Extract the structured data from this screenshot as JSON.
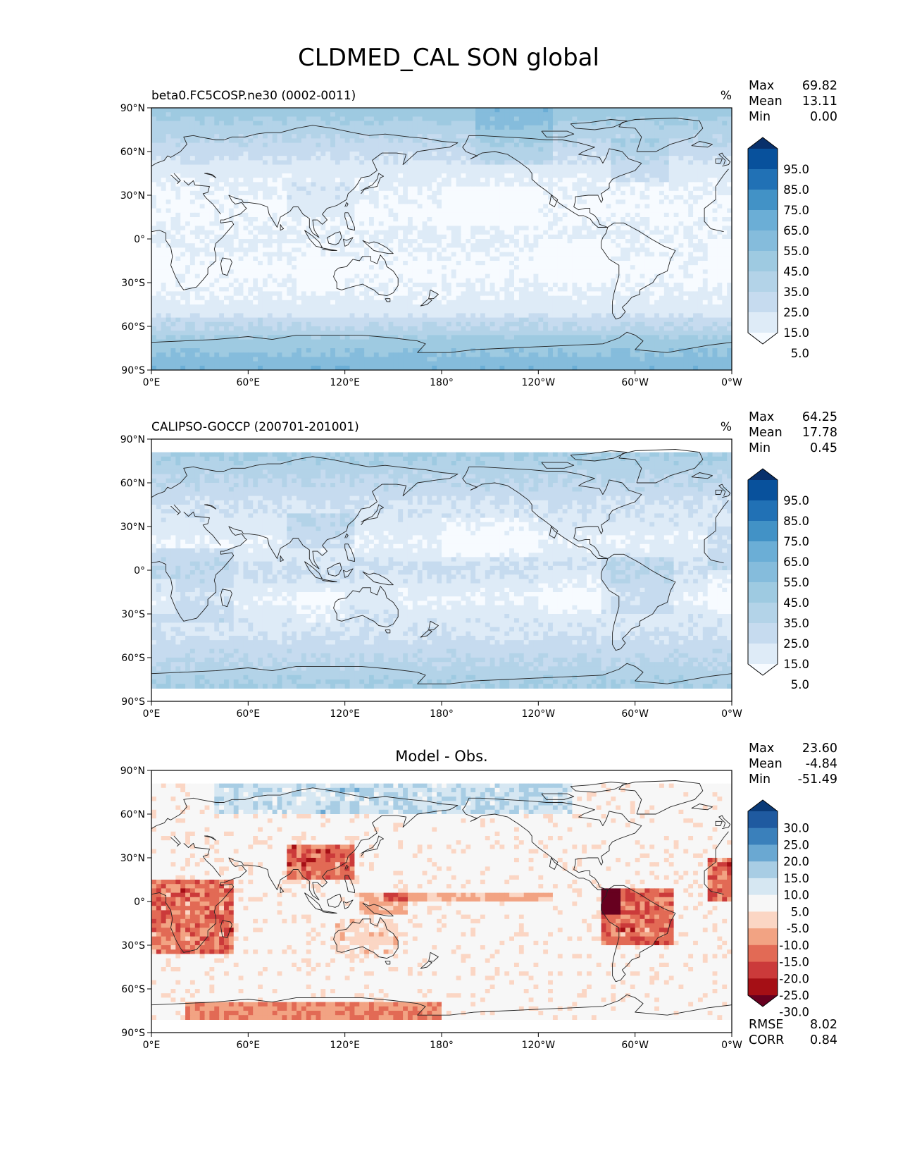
{
  "figure_title": "CLDMED_CAL SON global",
  "palettes": {
    "blues": [
      "#f7fbff",
      "#deebf7",
      "#c6dbef",
      "#b3d3e8",
      "#9ecae1",
      "#85bcdc",
      "#6baed6",
      "#4292c6",
      "#2171b5",
      "#08519c",
      "#08306b"
    ],
    "rdbu": [
      "#67001f",
      "#a50f15",
      "#cb3a3a",
      "#e26a55",
      "#f2a383",
      "#fbd6c4",
      "#f7f7f7",
      "#d6e7f2",
      "#a8cde4",
      "#6aa8d2",
      "#3a80bb",
      "#1f5aa0",
      "#0a3a77"
    ]
  },
  "panels": [
    {
      "id": "model",
      "left_title": "beta0.FC5COSP.ne30 (0002-0011)",
      "center_title": "",
      "units": "%",
      "stats": [
        {
          "label": "Max",
          "value": "69.82"
        },
        {
          "label": "Mean",
          "value": "13.11"
        },
        {
          "label": "Min",
          "value": "0.00"
        }
      ],
      "colorbar": {
        "palette": "blues",
        "labels": [
          "95.0",
          "85.0",
          "75.0",
          "65.0",
          "55.0",
          "45.0",
          "35.0",
          "25.0",
          "15.0",
          "5.0"
        ]
      },
      "extra_stats": []
    },
    {
      "id": "obs",
      "left_title": "CALIPSO-GOCCP (200701-201001)",
      "center_title": "",
      "units": "%",
      "stats": [
        {
          "label": "Max",
          "value": "64.25"
        },
        {
          "label": "Mean",
          "value": "17.78"
        },
        {
          "label": "Min",
          "value": "0.45"
        }
      ],
      "colorbar": {
        "palette": "blues",
        "labels": [
          "95.0",
          "85.0",
          "75.0",
          "65.0",
          "55.0",
          "45.0",
          "35.0",
          "25.0",
          "15.0",
          "5.0"
        ]
      },
      "extra_stats": []
    },
    {
      "id": "diff",
      "left_title": "",
      "center_title": "Model - Obs.",
      "units": "",
      "stats": [
        {
          "label": "Max",
          "value": "23.60"
        },
        {
          "label": "Mean",
          "value": "-4.84"
        },
        {
          "label": "Min",
          "value": "-51.49"
        }
      ],
      "colorbar": {
        "palette": "rdbu",
        "labels": [
          "30.0",
          "25.0",
          "20.0",
          "15.0",
          "10.0",
          "5.0",
          "-5.0",
          "-10.0",
          "-15.0",
          "-20.0",
          "-25.0",
          "-30.0"
        ]
      },
      "extra_stats": [
        {
          "label": "RMSE",
          "value": "8.02"
        },
        {
          "label": "CORR",
          "value": "0.84"
        }
      ]
    }
  ],
  "axes": {
    "lat_ticks": [
      "90°N",
      "60°N",
      "30°N",
      "0°",
      "30°S",
      "60°S",
      "90°S"
    ],
    "lon_ticks": [
      "0°E",
      "60°E",
      "120°E",
      "180°",
      "120°W",
      "60°W",
      "0°W"
    ]
  }
}
